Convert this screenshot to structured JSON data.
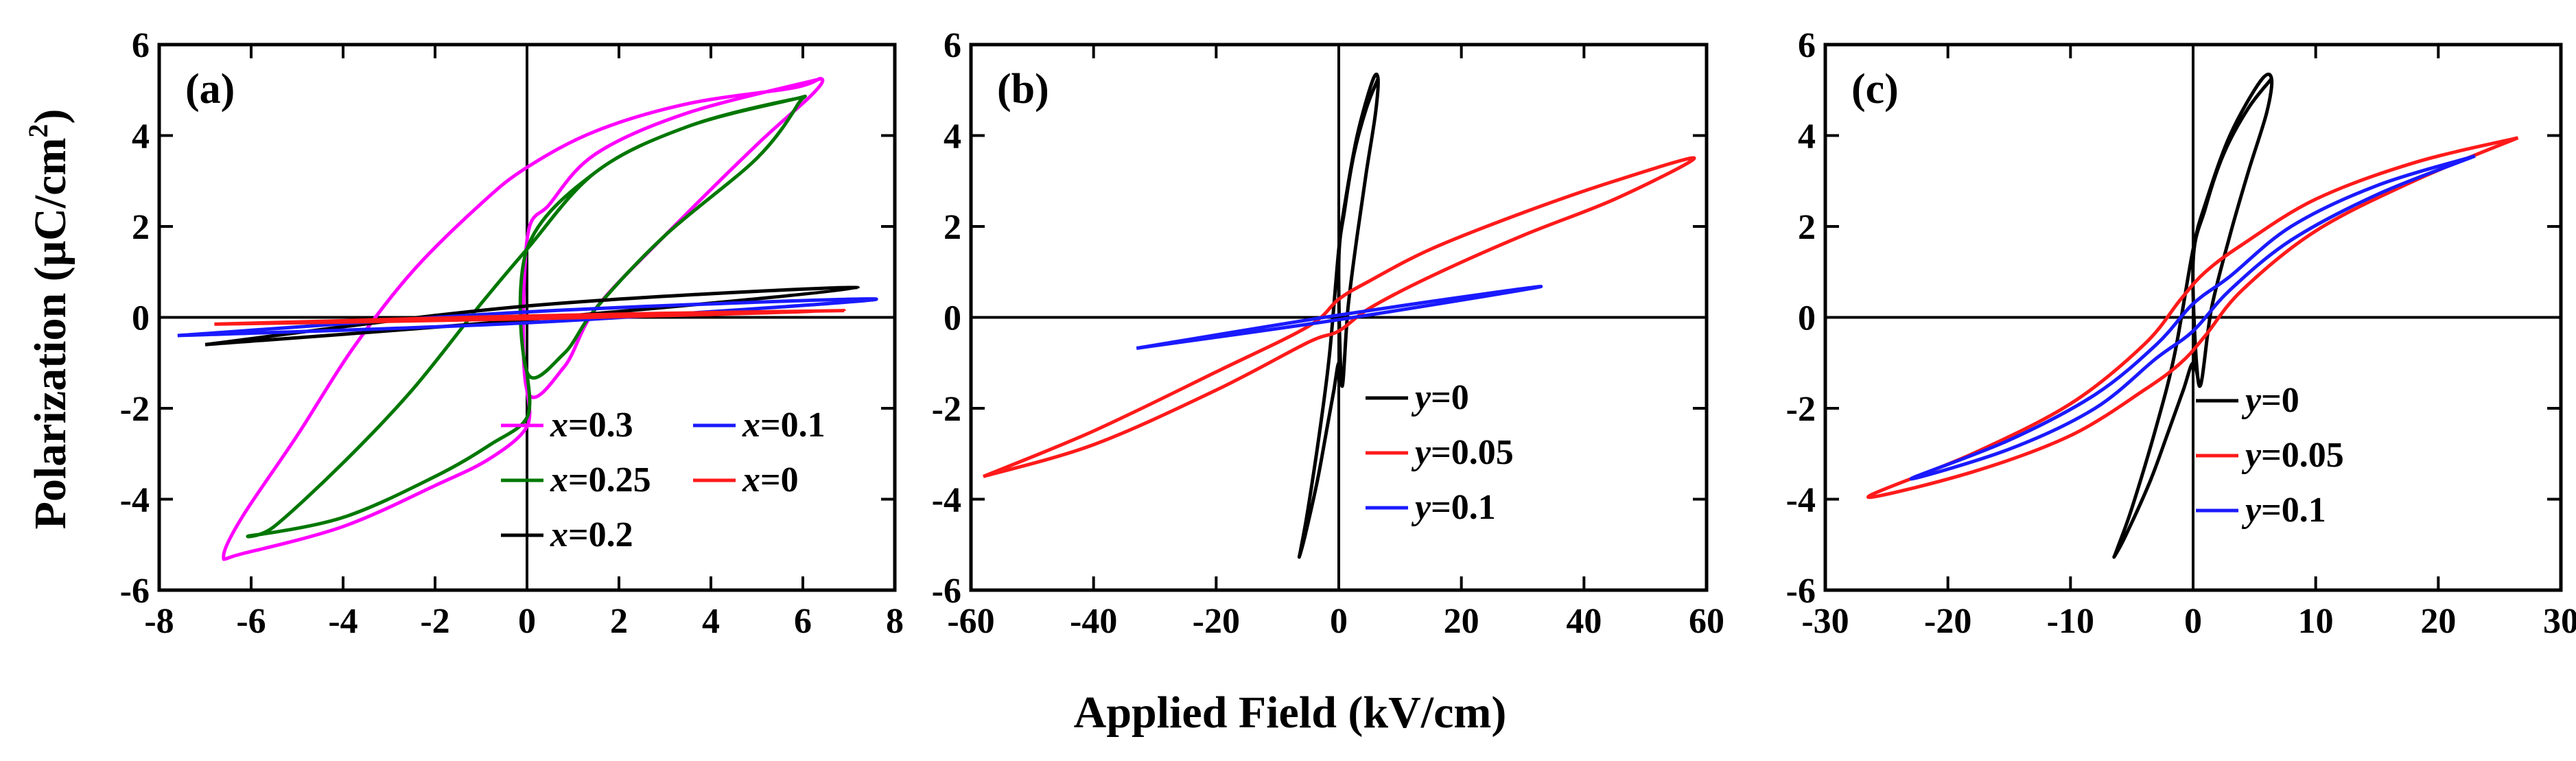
{
  "figure": {
    "xlabel": "Applied Field (kV/cm)",
    "ylabel_prefix": "Polarization (",
    "ylabel_unit": "μC/cm",
    "ylabel_sup": "2",
    "ylabel_suffix": ")"
  },
  "chart_data": [
    {
      "type": "line",
      "panel": "(a)",
      "xlabel": "Applied Field (kV/cm)",
      "ylabel": "Polarization (μC/cm2)",
      "xlim": [
        -8,
        8
      ],
      "ylim": [
        -6,
        6
      ],
      "xticks": [
        -8,
        -6,
        -4,
        -2,
        0,
        2,
        4,
        6,
        8
      ],
      "yticks": [
        -6,
        -4,
        -2,
        0,
        2,
        4,
        6
      ],
      "legend_position": "bottom-right",
      "legend_columns": 2,
      "series": [
        {
          "var": "x",
          "value": "=0.3",
          "color": "#ff00ff",
          "xs": [
            6.4,
            3.5,
            1.5,
            0.5,
            0,
            0,
            0.8,
            1.5,
            3,
            5,
            6.2,
            6.4,
            5.8,
            3.5,
            1.5,
            0,
            -1,
            -2.5,
            -3.8,
            -5,
            -6.2,
            -6.6,
            -6.2,
            -4,
            -2,
            -0.8,
            0,
            0
          ],
          "ys": [
            5.25,
            4.5,
            3.6,
            2.5,
            1.7,
            -1.6,
            -1.1,
            0.2,
            1.8,
            3.8,
            4.9,
            5.25,
            5.05,
            4.7,
            4.1,
            3.3,
            2.5,
            1.0,
            -0.7,
            -2.6,
            -4.4,
            -5.25,
            -5.2,
            -4.6,
            -3.7,
            -3.1,
            -2.4,
            -1.6
          ]
        },
        {
          "var": "x",
          "value": "=0.25",
          "color": "#007700",
          "xs": [
            5.8,
            3.5,
            1.5,
            0,
            0,
            0.8,
            1.5,
            3,
            5,
            5.9,
            5.8,
            3.5,
            1.5,
            0,
            -1,
            -2.5,
            -4,
            -5.5,
            -6,
            -4,
            -2,
            -0.8,
            0,
            0
          ],
          "ys": [
            4.8,
            4.2,
            3.2,
            1.5,
            -1.2,
            -0.8,
            0.2,
            1.8,
            3.5,
            4.7,
            4.8,
            4.2,
            3.2,
            1.5,
            0.3,
            -1.6,
            -3.2,
            -4.6,
            -4.8,
            -4.4,
            -3.5,
            -2.8,
            -2.2,
            -1.2
          ]
        },
        {
          "var": "x",
          "value": "=0.2",
          "color": "#000000",
          "xs": [
            -7,
            0,
            7.2,
            0,
            -7
          ],
          "ys": [
            -0.6,
            -0.05,
            0.65,
            0.25,
            -0.6
          ]
        },
        {
          "var": "x",
          "value": "=0.1",
          "color": "#1a1aff",
          "xs": [
            -7.6,
            0,
            7.6,
            0,
            -7.6
          ],
          "ys": [
            -0.4,
            -0.12,
            0.4,
            0.12,
            -0.4
          ]
        },
        {
          "var": "x",
          "value": "=0",
          "color": "#ff1a1a",
          "xs": [
            -6.8,
            0,
            6.9,
            0,
            -6.8
          ],
          "ys": [
            -0.15,
            -0.03,
            0.15,
            0.03,
            -0.15
          ]
        }
      ]
    },
    {
      "type": "line",
      "panel": "(b)",
      "xlabel": "Applied Field (kV/cm)",
      "ylabel": "Polarization (μC/cm2)",
      "xlim": [
        -60,
        60
      ],
      "ylim": [
        -6,
        6
      ],
      "xticks": [
        -60,
        -40,
        -20,
        0,
        20,
        40,
        60
      ],
      "yticks": [
        -6,
        -4,
        -2,
        0,
        2,
        4,
        6
      ],
      "legend_position": "bottom-right",
      "legend_columns": 1,
      "series": [
        {
          "var": "y",
          "value": "=0",
          "color": "#000000",
          "xs": [
            6.4,
            4.5,
            2.5,
            1,
            0,
            0.5,
            1.5,
            3,
            4.5,
            6,
            6.4,
            5.5,
            3,
            1,
            0,
            -1.5,
            -3,
            -5,
            -6.2,
            -6.4,
            -5.5,
            -3.5,
            -2,
            -0.8,
            0,
            0.5
          ],
          "ys": [
            5.25,
            4.6,
            3.6,
            2.4,
            1.2,
            -1.5,
            0.2,
            1.8,
            3.2,
            4.5,
            5.25,
            5.2,
            4.0,
            2.5,
            1.5,
            -0.8,
            -2.4,
            -4.2,
            -5.1,
            -5.25,
            -4.8,
            -3.6,
            -2.5,
            -1.6,
            -1.0,
            -1.5
          ]
        },
        {
          "var": "y",
          "value": "=0.05",
          "color": "#ff1a1a",
          "xs": [
            -58,
            -40,
            -20,
            -5,
            0,
            5,
            15,
            30,
            45,
            58,
            45,
            30,
            15,
            5,
            0,
            -5,
            -20,
            -40,
            -58
          ],
          "ys": [
            -3.5,
            -2.8,
            -1.6,
            -0.55,
            -0.3,
            0.2,
            0.9,
            1.8,
            2.6,
            3.5,
            3.0,
            2.3,
            1.5,
            0.8,
            0.4,
            -0.2,
            -1.2,
            -2.5,
            -3.5
          ]
        },
        {
          "var": "y",
          "value": "=0.1",
          "color": "#1a1aff",
          "xs": [
            -33,
            0,
            33,
            0,
            -33
          ],
          "ys": [
            -0.68,
            -0.05,
            0.68,
            0.05,
            -0.68
          ]
        }
      ]
    },
    {
      "type": "line",
      "panel": "(c)",
      "xlabel": "Applied Field (kV/cm)",
      "ylabel": "Polarization (μC/cm2)",
      "xlim": [
        -30,
        30
      ],
      "ylim": [
        -6,
        6
      ],
      "xticks": [
        -30,
        -20,
        -10,
        0,
        10,
        20,
        30
      ],
      "yticks": [
        -6,
        -4,
        -2,
        0,
        2,
        4,
        6
      ],
      "legend_position": "bottom-right",
      "legend_columns": 1,
      "series": [
        {
          "var": "y",
          "value": "=0",
          "color": "#000000",
          "xs": [
            6.4,
            4.5,
            2.5,
            1,
            0,
            0.5,
            1.5,
            3,
            4.5,
            6,
            6.4,
            5.5,
            3,
            1,
            0,
            -1.5,
            -3,
            -5,
            -6.2,
            -6.4,
            -5.5,
            -3.5,
            -2,
            -0.8,
            0,
            0.5
          ],
          "ys": [
            5.25,
            4.6,
            3.6,
            2.4,
            1.2,
            -1.5,
            0.2,
            1.8,
            3.2,
            4.5,
            5.25,
            5.2,
            4.0,
            2.5,
            1.5,
            -0.8,
            -2.4,
            -4.2,
            -5.1,
            -5.25,
            -4.8,
            -3.6,
            -2.5,
            -1.6,
            -1.0,
            -1.5
          ]
        },
        {
          "var": "y",
          "value": "=0.05",
          "color": "#ff1a1a",
          "xs": [
            26.5,
            18,
            10,
            4,
            1,
            -1,
            -4,
            -10,
            -18,
            -26.5,
            -18,
            -10,
            -4,
            -1,
            1,
            4,
            10,
            18,
            26.5
          ],
          "ys": [
            3.95,
            3.4,
            2.6,
            1.6,
            1.0,
            0.4,
            -0.6,
            -1.9,
            -3.0,
            -3.95,
            -3.4,
            -2.6,
            -1.6,
            -1.0,
            -0.4,
            0.6,
            1.9,
            3.0,
            3.95
          ]
        },
        {
          "var": "y",
          "value": "=0.1",
          "color": "#1a1aff",
          "xs": [
            23,
            15,
            8,
            3,
            0,
            -3,
            -8,
            -15,
            -23,
            -15,
            -8,
            -3,
            0,
            3,
            8,
            15,
            23
          ],
          "ys": [
            3.55,
            2.9,
            2.0,
            0.9,
            0.3,
            -0.6,
            -1.7,
            -2.7,
            -3.55,
            -2.9,
            -2.0,
            -0.9,
            -0.3,
            0.6,
            1.7,
            2.7,
            3.55
          ]
        }
      ]
    }
  ]
}
